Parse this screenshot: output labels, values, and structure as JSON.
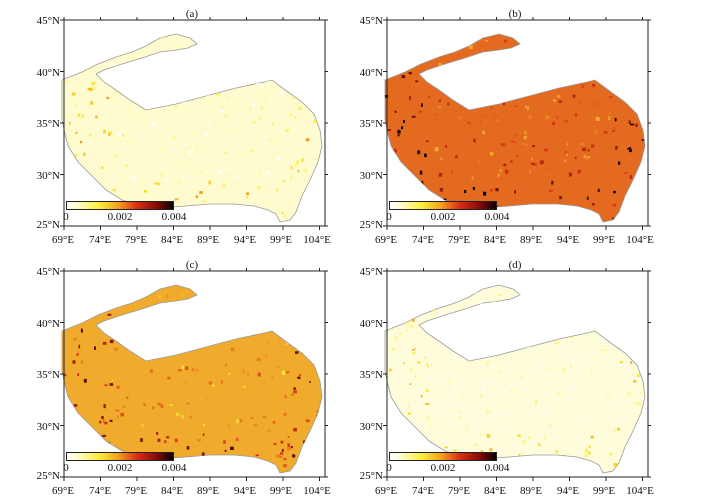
{
  "panels": [
    {
      "id": "a",
      "label": "(a)",
      "level": 0.08
    },
    {
      "id": "b",
      "label": "(b)",
      "level": 0.62
    },
    {
      "id": "c",
      "label": "(c)",
      "level": 0.48
    },
    {
      "id": "d",
      "label": "(d)",
      "level": 0.06
    }
  ],
  "y_axis_labels": [
    "45°N",
    "40°N",
    "35°N",
    "30°N",
    "25°N"
  ],
  "x_axis_labels": [
    "69°E",
    "74°E",
    "79°E",
    "84°E",
    "89°E",
    "94°E",
    "99°E",
    "104°E"
  ],
  "colorbar": {
    "labels": [
      "0",
      "0.002",
      "0.004"
    ],
    "min": 0,
    "max": 0.004
  },
  "colors": {
    "low": "#ffffff",
    "mid": "#fcef3a",
    "high": "#d92e14",
    "max": "#050000"
  }
}
